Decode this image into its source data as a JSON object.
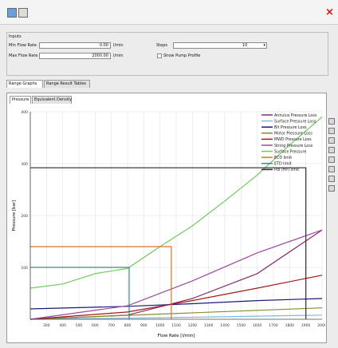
{
  "app": {
    "close_label": "×",
    "toolbar": [
      {
        "name": "save-icon"
      },
      {
        "name": "print-icon"
      }
    ]
  },
  "inputs": {
    "group_title": "Inputs",
    "min_flow_label": "Min Flow Rate",
    "min_flow_value": "0.00",
    "min_flow_unit": "l/min",
    "max_flow_label": "Max Flow Rate",
    "max_flow_value": "2000.00",
    "max_flow_unit": "l/min",
    "steps_label": "Steps",
    "steps_value": "10",
    "show_pump_profile_label": "Show Pump Profile"
  },
  "tabs": {
    "main": [
      "Range Graphs",
      "Range Result Tables"
    ],
    "sub": [
      "Pressure",
      "Equivalent Density"
    ]
  },
  "chart_data": {
    "type": "line",
    "xlabel": "Flow Rate [l/min]",
    "ylabel": "Pressure [bar]",
    "xlim": [
      200,
      2000
    ],
    "ylim": [
      0,
      400
    ],
    "x_ticks": [
      200,
      300,
      400,
      500,
      600,
      700,
      800,
      900,
      1000,
      1100,
      1200,
      1300,
      1400,
      1500,
      1600,
      1700,
      1800,
      1900,
      2000
    ],
    "y_ticks": [
      100,
      200,
      300,
      400
    ],
    "x_tick_labels": [
      "",
      "300",
      "400",
      "500",
      "600",
      "700",
      "800",
      "900",
      "1000",
      "1100",
      "1200",
      "1300",
      "1400",
      "1500",
      "1600",
      "1700",
      "1800",
      "1900",
      "2000"
    ],
    "y_tick_labels": [
      "",
      "100",
      "200",
      "300",
      "400"
    ],
    "grid": true,
    "legend_position": "top-right",
    "series": [
      {
        "name": "Annulus Pressure Loss",
        "color": "#8a2a6a",
        "x": [
          200,
          800,
          1200,
          1600,
          2000
        ],
        "y": [
          0,
          8,
          40,
          88,
          172
        ]
      },
      {
        "name": "Surface Pressure Loss",
        "color": "#7fb8e0",
        "x": [
          200,
          1000,
          2000
        ],
        "y": [
          0,
          3,
          8
        ]
      },
      {
        "name": "Bit Pressure Loss",
        "color": "#1a1a7a",
        "x": [
          200,
          800,
          1200,
          1600,
          2000
        ],
        "y": [
          20,
          25,
          30,
          36,
          40
        ]
      },
      {
        "name": "Motor Pressure Loss",
        "color": "#8a8a30",
        "x": [
          200,
          1000,
          2000
        ],
        "y": [
          0,
          10,
          22
        ]
      },
      {
        "name": "MWD Pressure Loss",
        "color": "#a01a1a",
        "x": [
          200,
          800,
          1200,
          1600,
          2000
        ],
        "y": [
          0,
          14,
          36,
          60,
          85
        ]
      },
      {
        "name": "String Pressure Loss",
        "color": "#9a4aa0",
        "x": [
          200,
          800,
          1200,
          1600,
          2000
        ],
        "y": [
          0,
          26,
          74,
          128,
          172
        ]
      },
      {
        "name": "Surface Pressure",
        "color": "#70c860",
        "x": [
          200,
          400,
          600,
          800,
          1000,
          1200,
          1400,
          1600,
          1800,
          2000
        ],
        "y": [
          60,
          68,
          88,
          98,
          140,
          180,
          228,
          278,
          336,
          390
        ]
      },
      {
        "name": "ECD limit",
        "color": "#e07030",
        "x": [
          200,
          1070,
          1070
        ],
        "y": [
          140,
          140,
          0
        ]
      },
      {
        "name": "ETD limit",
        "color": "#3a8a8a",
        "x": [
          200,
          810,
          810
        ],
        "y": [
          100,
          100,
          0
        ]
      },
      {
        "name": "Pdl (HP) limit",
        "color": "#2a2a2a",
        "x": [
          200,
          1900,
          1900
        ],
        "y": [
          292,
          292,
          0
        ]
      }
    ]
  }
}
